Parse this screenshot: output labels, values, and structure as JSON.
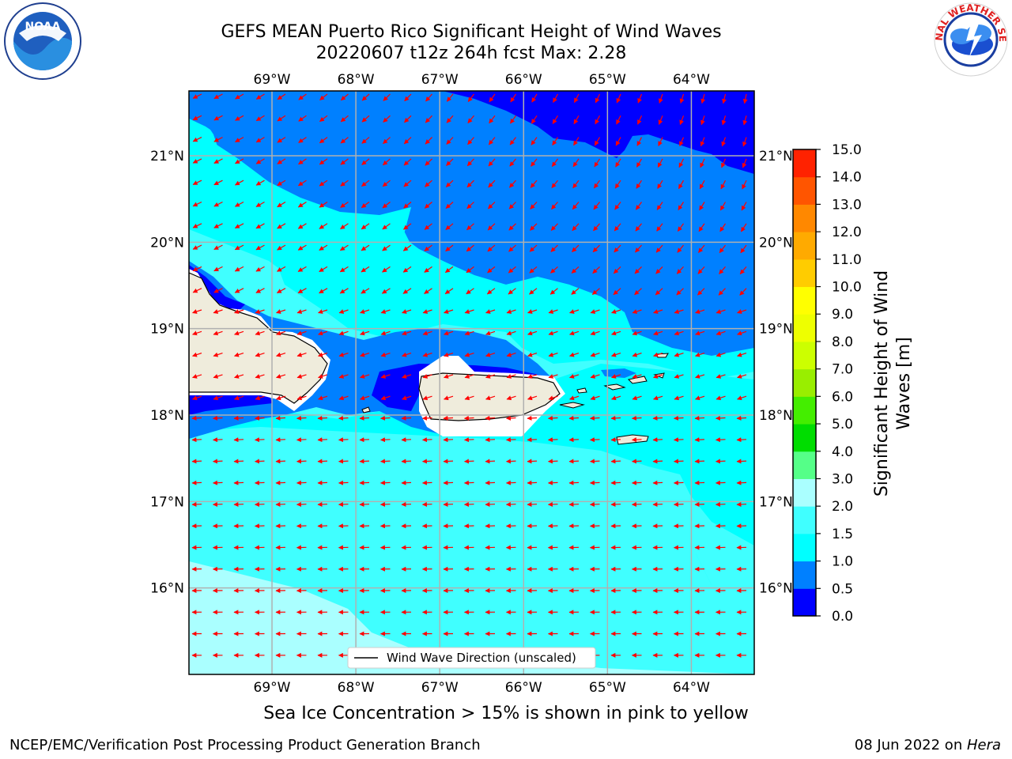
{
  "title": {
    "line1": "GEFS MEAN Puerto Rico Significant Height of Wind Waves",
    "line2": "20220607 t12z 264h fcst   Max: 2.28"
  },
  "map": {
    "lon_range": [
      -69.99,
      -63.25
    ],
    "lat_range": [
      15.0,
      21.75
    ],
    "lon_ticks": [
      {
        "value": -69,
        "label": "69°W"
      },
      {
        "value": -68,
        "label": "68°W"
      },
      {
        "value": -67,
        "label": "67°W"
      },
      {
        "value": -66,
        "label": "66°W"
      },
      {
        "value": -65,
        "label": "65°W"
      },
      {
        "value": -64,
        "label": "64°W"
      }
    ],
    "lat_ticks": [
      {
        "value": 16,
        "label": "16°N"
      },
      {
        "value": 17,
        "label": "17°N"
      },
      {
        "value": 18,
        "label": "18°N"
      },
      {
        "value": 19,
        "label": "19°N"
      },
      {
        "value": 20,
        "label": "20°N"
      },
      {
        "value": 21,
        "label": "21°N"
      }
    ],
    "legend_label": "Wind Wave Direction (unscaled)",
    "arrow_color": "#ff0000",
    "land_color": "#efecdc"
  },
  "colorbar": {
    "label": "Significant Height of Wind Waves [m]",
    "label_line1": "Significant Height of Wind",
    "label_line2": "Waves [m]",
    "levels": [
      "0.0",
      "0.5",
      "1.0",
      "1.5",
      "2.0",
      "3.0",
      "4.0",
      "5.0",
      "6.0",
      "7.0",
      "8.0",
      "9.0",
      "10.0",
      "11.0",
      "12.0",
      "13.0",
      "14.0",
      "15.0"
    ],
    "colors": [
      "#0000ff",
      "#0080ff",
      "#00ffff",
      "#40ffff",
      "#aaffff",
      "#55ff88",
      "#00dd00",
      "#44ee00",
      "#99ee00",
      "#ccff00",
      "#eeff00",
      "#ffff00",
      "#ffcc00",
      "#ffaa00",
      "#ff8800",
      "#ff5500",
      "#ff2200"
    ]
  },
  "logos": {
    "noaa": "NOAA",
    "noaa_ring": "NATIONAL OCEANIC AND ATMOSPHERIC ADMINISTRATION · U.S. DEPARTMENT OF COMMERCE",
    "nws_ring": "NATIONAL WEATHER SERVICE"
  },
  "caption": "Sea Ice Concentration > 15% is shown in pink to yellow",
  "footer": {
    "left": "NCEP/EMC/Verification Post Processing Product Generation Branch",
    "right_prefix": "08 Jun 2022 on ",
    "right_host": "Hera"
  }
}
